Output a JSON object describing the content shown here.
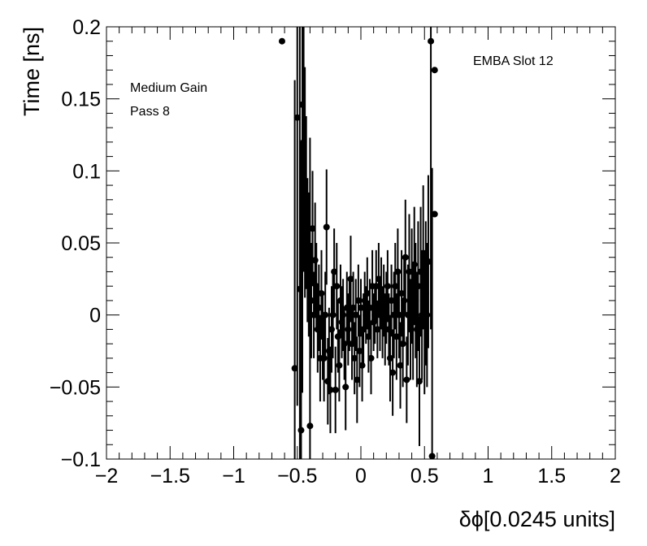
{
  "chart_data": {
    "type": "scatter",
    "xlabel": "δϕ[0.0245 units]",
    "ylabel": "Time [ns]",
    "xlim": [
      -2,
      2
    ],
    "ylim": [
      -0.1,
      0.2
    ],
    "x_ticks": [
      "−2",
      "−1.5",
      "−1",
      "−0.5",
      "0",
      "0.5",
      "1",
      "1.5",
      "2"
    ],
    "y_ticks": [
      "−0.1",
      "−0.05",
      "0",
      "0.05",
      "0.1",
      "0.15",
      "0.2"
    ],
    "grid": false,
    "annotations": [
      "Medium Gain",
      "Pass 8",
      "EMBA Slot 12"
    ],
    "marker_color": "#000000",
    "series": [
      {
        "points": [
          {
            "x": -0.62,
            "y": 0.19,
            "err": 0.0
          },
          {
            "x": -0.52,
            "y": -0.037,
            "err": 0.2
          },
          {
            "x": -0.5,
            "y": 0.137,
            "err": 0.2
          },
          {
            "x": -0.48,
            "y": 0.018,
            "err": 0.2
          },
          {
            "x": -0.47,
            "y": -0.08,
            "err": 0.2
          },
          {
            "x": -0.46,
            "y": 0.146,
            "err": 0.2
          },
          {
            "x": -0.45,
            "y": 0.12,
            "err": 0.09
          },
          {
            "x": -0.44,
            "y": 0.092,
            "err": 0.08
          },
          {
            "x": -0.43,
            "y": 0.078,
            "err": 0.06
          },
          {
            "x": -0.42,
            "y": 0.045,
            "err": 0.05
          },
          {
            "x": -0.41,
            "y": 0.035,
            "err": 0.05
          },
          {
            "x": -0.4,
            "y": -0.077,
            "err": 0.2
          },
          {
            "x": -0.39,
            "y": 0.01,
            "err": 0.04
          },
          {
            "x": -0.38,
            "y": 0.06,
            "err": 0.04
          },
          {
            "x": -0.37,
            "y": 0.0,
            "err": 0.03
          },
          {
            "x": -0.36,
            "y": 0.038,
            "err": 0.04
          },
          {
            "x": -0.35,
            "y": 0.02,
            "err": 0.03
          },
          {
            "x": -0.34,
            "y": -0.01,
            "err": 0.03
          },
          {
            "x": -0.33,
            "y": 0.005,
            "err": 0.03
          },
          {
            "x": -0.32,
            "y": -0.03,
            "err": 0.03
          },
          {
            "x": -0.31,
            "y": 0.015,
            "err": 0.03
          },
          {
            "x": -0.3,
            "y": -0.015,
            "err": 0.03
          },
          {
            "x": -0.29,
            "y": -0.03,
            "err": 0.03
          },
          {
            "x": -0.28,
            "y": 0.0,
            "err": 0.03
          },
          {
            "x": -0.27,
            "y": 0.061,
            "err": 0.04
          },
          {
            "x": -0.26,
            "y": -0.046,
            "err": 0.03
          },
          {
            "x": -0.25,
            "y": -0.025,
            "err": 0.03
          },
          {
            "x": -0.24,
            "y": -0.052,
            "err": 0.03
          },
          {
            "x": -0.23,
            "y": -0.01,
            "err": 0.03
          },
          {
            "x": -0.22,
            "y": 0.0,
            "err": 0.03
          },
          {
            "x": -0.21,
            "y": 0.03,
            "err": 0.03
          },
          {
            "x": -0.2,
            "y": -0.052,
            "err": 0.03
          },
          {
            "x": -0.19,
            "y": 0.02,
            "err": 0.03
          },
          {
            "x": -0.18,
            "y": -0.015,
            "err": 0.025
          },
          {
            "x": -0.17,
            "y": -0.035,
            "err": 0.025
          },
          {
            "x": -0.16,
            "y": 0.01,
            "err": 0.025
          },
          {
            "x": -0.15,
            "y": -0.005,
            "err": 0.025
          },
          {
            "x": -0.14,
            "y": 0.0,
            "err": 0.025
          },
          {
            "x": -0.13,
            "y": -0.02,
            "err": 0.025
          },
          {
            "x": -0.12,
            "y": -0.05,
            "err": 0.03
          },
          {
            "x": -0.11,
            "y": 0.005,
            "err": 0.025
          },
          {
            "x": -0.1,
            "y": -0.01,
            "err": 0.025
          },
          {
            "x": -0.09,
            "y": 0.0,
            "err": 0.025
          },
          {
            "x": -0.08,
            "y": 0.025,
            "err": 0.03
          },
          {
            "x": -0.07,
            "y": -0.02,
            "err": 0.025
          },
          {
            "x": -0.06,
            "y": 0.005,
            "err": 0.025
          },
          {
            "x": -0.05,
            "y": -0.03,
            "err": 0.025
          },
          {
            "x": -0.04,
            "y": 0.0,
            "err": 0.025
          },
          {
            "x": -0.03,
            "y": -0.045,
            "err": 0.03
          },
          {
            "x": -0.02,
            "y": 0.01,
            "err": 0.025
          },
          {
            "x": -0.01,
            "y": -0.025,
            "err": 0.025
          },
          {
            "x": 0.0,
            "y": 0.005,
            "err": 0.02
          },
          {
            "x": 0.01,
            "y": -0.035,
            "err": 0.025
          },
          {
            "x": 0.02,
            "y": -0.01,
            "err": 0.025
          },
          {
            "x": 0.03,
            "y": 0.01,
            "err": 0.02
          },
          {
            "x": 0.04,
            "y": 0.0,
            "err": 0.02
          },
          {
            "x": 0.05,
            "y": 0.015,
            "err": 0.025
          },
          {
            "x": 0.06,
            "y": -0.015,
            "err": 0.025
          },
          {
            "x": 0.07,
            "y": 0.005,
            "err": 0.02
          },
          {
            "x": 0.08,
            "y": -0.03,
            "err": 0.025
          },
          {
            "x": 0.09,
            "y": 0.02,
            "err": 0.025
          },
          {
            "x": 0.1,
            "y": -0.005,
            "err": 0.02
          },
          {
            "x": 0.11,
            "y": 0.0,
            "err": 0.02
          },
          {
            "x": 0.12,
            "y": 0.02,
            "err": 0.025
          },
          {
            "x": 0.13,
            "y": -0.01,
            "err": 0.02
          },
          {
            "x": 0.14,
            "y": 0.025,
            "err": 0.025
          },
          {
            "x": 0.15,
            "y": 0.0,
            "err": 0.025
          },
          {
            "x": 0.16,
            "y": 0.015,
            "err": 0.025
          },
          {
            "x": 0.17,
            "y": -0.005,
            "err": 0.025
          },
          {
            "x": 0.18,
            "y": 0.01,
            "err": 0.025
          },
          {
            "x": 0.19,
            "y": -0.01,
            "err": 0.025
          },
          {
            "x": 0.2,
            "y": 0.005,
            "err": 0.025
          },
          {
            "x": 0.21,
            "y": 0.02,
            "err": 0.025
          },
          {
            "x": 0.22,
            "y": -0.01,
            "err": 0.025
          },
          {
            "x": 0.23,
            "y": -0.03,
            "err": 0.03
          },
          {
            "x": 0.24,
            "y": 0.01,
            "err": 0.025
          },
          {
            "x": 0.25,
            "y": -0.04,
            "err": 0.03
          },
          {
            "x": 0.26,
            "y": 0.0,
            "err": 0.03
          },
          {
            "x": 0.27,
            "y": 0.02,
            "err": 0.03
          },
          {
            "x": 0.28,
            "y": -0.015,
            "err": 0.03
          },
          {
            "x": 0.29,
            "y": 0.03,
            "err": 0.03
          },
          {
            "x": 0.3,
            "y": 0.0,
            "err": 0.03
          },
          {
            "x": 0.31,
            "y": -0.035,
            "err": 0.03
          },
          {
            "x": 0.32,
            "y": 0.015,
            "err": 0.03
          },
          {
            "x": 0.33,
            "y": -0.02,
            "err": 0.03
          },
          {
            "x": 0.34,
            "y": 0.01,
            "err": 0.03
          },
          {
            "x": 0.35,
            "y": 0.04,
            "err": 0.04
          },
          {
            "x": 0.36,
            "y": -0.045,
            "err": 0.03
          },
          {
            "x": 0.37,
            "y": 0.0,
            "err": 0.035
          },
          {
            "x": 0.38,
            "y": 0.03,
            "err": 0.04
          },
          {
            "x": 0.39,
            "y": -0.01,
            "err": 0.035
          },
          {
            "x": 0.4,
            "y": 0.02,
            "err": 0.04
          },
          {
            "x": 0.41,
            "y": -0.005,
            "err": 0.04
          },
          {
            "x": 0.42,
            "y": 0.035,
            "err": 0.04
          },
          {
            "x": 0.43,
            "y": 0.01,
            "err": 0.04
          },
          {
            "x": 0.44,
            "y": -0.01,
            "err": 0.04
          },
          {
            "x": 0.45,
            "y": 0.02,
            "err": 0.045
          },
          {
            "x": 0.46,
            "y": -0.046,
            "err": 0.045
          },
          {
            "x": 0.47,
            "y": 0.03,
            "err": 0.045
          },
          {
            "x": 0.48,
            "y": 0.0,
            "err": 0.045
          },
          {
            "x": 0.49,
            "y": 0.04,
            "err": 0.05
          },
          {
            "x": 0.5,
            "y": -0.005,
            "err": 0.05
          },
          {
            "x": 0.51,
            "y": 0.015,
            "err": 0.05
          },
          {
            "x": 0.52,
            "y": 0.0,
            "err": 0.05
          },
          {
            "x": 0.53,
            "y": 0.037,
            "err": 0.06
          },
          {
            "x": 0.55,
            "y": 0.19,
            "err": 0.2
          },
          {
            "x": 0.56,
            "y": -0.098,
            "err": 0.2
          },
          {
            "x": 0.58,
            "y": 0.17,
            "err": 0.0
          },
          {
            "x": 0.58,
            "y": 0.07,
            "err": 0.0
          }
        ]
      }
    ]
  }
}
